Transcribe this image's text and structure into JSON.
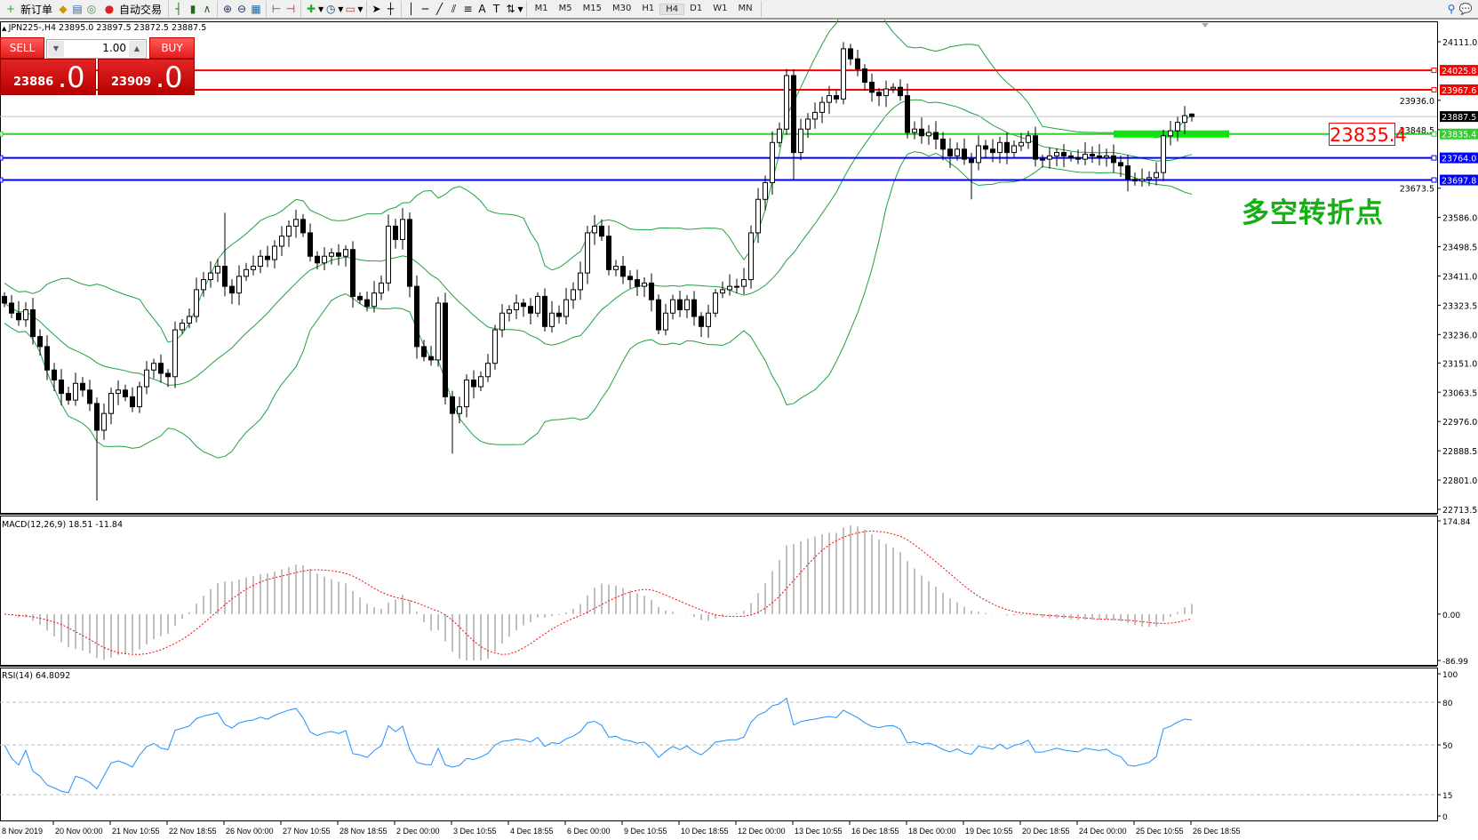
{
  "toolbar": {
    "new_order": "新订单",
    "auto_trading": "自动交易",
    "timeframes": [
      "M1",
      "M5",
      "M15",
      "M30",
      "H1",
      "H4",
      "D1",
      "W1",
      "MN"
    ],
    "active_timeframe": "H4",
    "icons": [
      "new-order-icon",
      "history-icon",
      "navigator-icon",
      "signals-icon",
      "auto-trading-icon",
      "bar-chart-icon",
      "candlestick-icon",
      "line-chart-icon",
      "zoom-in-icon",
      "zoom-out-icon",
      "tile-windows-icon",
      "autoscroll-icon",
      "chart-shift-icon",
      "indicators-icon",
      "periods-icon",
      "templates-icon",
      "cursor-icon",
      "crosshair-icon",
      "vertical-line-icon",
      "horizontal-line-icon",
      "trendline-icon",
      "equidistant-channel-icon",
      "fibonacci-icon",
      "text-icon",
      "text-label-icon",
      "arrows-icon",
      "search-icon",
      "chat-icon"
    ]
  },
  "chart": {
    "header": "JPN225-,H4  23895.0 23897.5 23872.5 23887.5",
    "trade_panel": {
      "sell_label": "SELL",
      "buy_label": "BUY",
      "lot": "1.00",
      "sell_price_main": "23886",
      "sell_price_big": ".0",
      "buy_price_main": "23909",
      "buy_price_big": ".0"
    },
    "price_axis": [
      "24111.0",
      "23936.0",
      "23848.5",
      "23673.5",
      "23586.0",
      "23498.5",
      "23411.0",
      "23323.5",
      "23236.0",
      "23151.0",
      "23063.5",
      "22976.0",
      "22888.5",
      "22801.0",
      "22713.5"
    ],
    "price_range": [
      22713.5,
      24111.0
    ],
    "current_price": {
      "value": 23887.5,
      "label": "23887.5",
      "color": "#000000"
    },
    "horizontal_lines": [
      {
        "value": 24025.8,
        "label": "24025.8",
        "color": "#ff0000"
      },
      {
        "value": 23967.6,
        "label": "23967.6",
        "color": "#ff0000"
      },
      {
        "value": 23835.4,
        "label": "23835.4",
        "color": "#33cc33"
      },
      {
        "value": 23764.0,
        "label": "23764.0",
        "color": "#0000ff"
      },
      {
        "value": 23697.8,
        "label": "23697.8",
        "color": "#0000ff"
      }
    ],
    "annotation_box": "23835.4",
    "annotation_text": "多空转折点",
    "highlight_color": "#00ee00",
    "candles_close": [
      23330,
      23300,
      23280,
      23310,
      23230,
      23200,
      23130,
      23100,
      23060,
      23040,
      23090,
      23070,
      23030,
      22950,
      23000,
      23060,
      23070,
      23050,
      23020,
      23080,
      23130,
      23150,
      23120,
      23110,
      23250,
      23270,
      23290,
      23370,
      23400,
      23420,
      23440,
      23380,
      23360,
      23410,
      23430,
      23440,
      23470,
      23460,
      23500,
      23530,
      23560,
      23580,
      23540,
      23470,
      23450,
      23470,
      23480,
      23470,
      23490,
      23350,
      23340,
      23320,
      23360,
      23390,
      23560,
      23520,
      23580,
      23380,
      23200,
      23170,
      23160,
      23330,
      23050,
      23000,
      23020,
      23100,
      23080,
      23110,
      23150,
      23250,
      23300,
      23310,
      23330,
      23320,
      23300,
      23350,
      23260,
      23300,
      23290,
      23340,
      23370,
      23420,
      23540,
      23560,
      23530,
      23430,
      23440,
      23410,
      23400,
      23380,
      23390,
      23340,
      23250,
      23300,
      23340,
      23310,
      23340,
      23290,
      23260,
      23300,
      23360,
      23370,
      23380,
      23380,
      23400,
      23540,
      23640,
      23690,
      23810,
      23850,
      24010,
      23780,
      23850,
      23880,
      23900,
      23930,
      23950,
      23940,
      24090,
      24060,
      24030,
      23990,
      23960,
      23950,
      23970,
      23975,
      23950,
      23840,
      23850,
      23830,
      23840,
      23820,
      23790,
      23770,
      23790,
      23760,
      23750,
      23800,
      23790,
      23780,
      23810,
      23780,
      23800,
      23810,
      23830,
      23760,
      23760,
      23770,
      23780,
      23770,
      23765,
      23760,
      23775,
      23770,
      23765,
      23770,
      23750,
      23740,
      23700,
      23695,
      23700,
      23705,
      23720,
      23830,
      23845,
      23870,
      23890,
      23887.5
    ],
    "last_candle": {
      "open": 23895.0,
      "high": 23897.5,
      "low": 23872.5,
      "close": 23887.5
    },
    "wick_extremes": [
      {
        "bar": 13,
        "low": 22740
      },
      {
        "bar": 31,
        "high": 23600
      },
      {
        "bar": 63,
        "low": 22880
      },
      {
        "bar": 110,
        "high": 24030
      },
      {
        "bar": 111,
        "low": 23700
      },
      {
        "bar": 118,
        "high": 24110
      },
      {
        "bar": 136,
        "low": 23640
      }
    ]
  },
  "macd": {
    "label": "MACD(12,26,9) 18.51 -11.84",
    "axis": [
      "174.84",
      "0.00",
      "-86.99"
    ],
    "range": [
      -86.99,
      174.84
    ],
    "histogram_color": "#c0c0c0",
    "signal_color": "#ff0000"
  },
  "rsi": {
    "label": "RSI(14) 64.8092",
    "axis": [
      "100",
      "80",
      "50",
      "15",
      "0"
    ],
    "levels": [
      80,
      50,
      15
    ],
    "line_color": "#1e90ff"
  },
  "time_axis": [
    "8 Nov 2019",
    "20 Nov 00:00",
    "21 Nov 10:55",
    "22 Nov 18:55",
    "26 Nov 00:00",
    "27 Nov 10:55",
    "28 Nov 18:55",
    "2 Dec 00:00",
    "3 Dec 10:55",
    "4 Dec 18:55",
    "6 Dec 00:00",
    "9 Dec 10:55",
    "10 Dec 18:55",
    "12 Dec 00:00",
    "13 Dec 10:55",
    "16 Dec 18:55",
    "18 Dec 00:00",
    "19 Dec 10:55",
    "20 Dec 18:55",
    "24 Dec 00:00",
    "25 Dec 10:55",
    "26 Dec 18:55"
  ],
  "colors": {
    "bollinger": "#20a040",
    "candle_bull": "#ffffff",
    "candle_bear": "#000000"
  }
}
